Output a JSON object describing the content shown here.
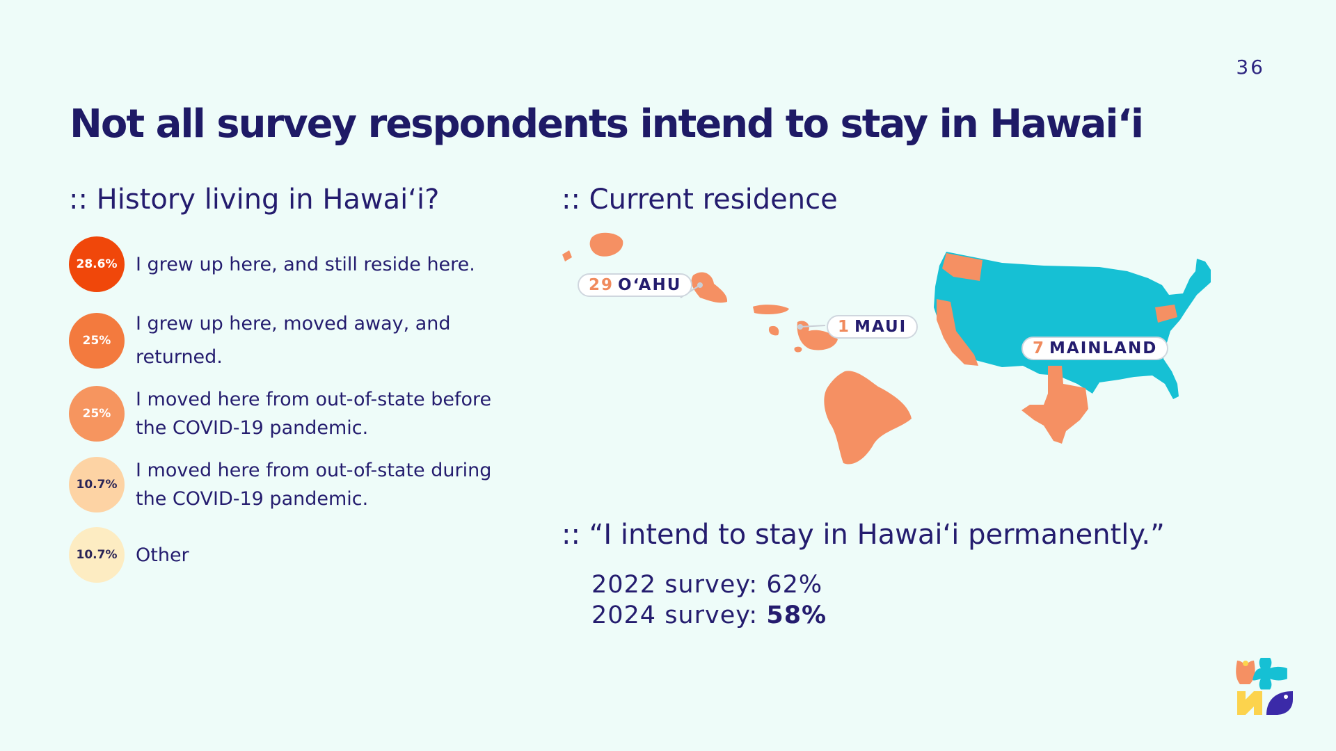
{
  "page_number": "36",
  "title": "Not all survey respondents intend to stay in Hawaiʻi",
  "history": {
    "heading": ":: History living in Hawaiʻi?",
    "items": [
      {
        "percent": "28.6%",
        "label": "I grew up here, and still reside here.",
        "color": "#f0470a",
        "text_color": "#ffffff"
      },
      {
        "percent": "25%",
        "label": "I grew up here, moved away, and returned.",
        "color": "#f37a3e",
        "text_color": "#ffffff"
      },
      {
        "percent": "25%",
        "label": "I moved here from out-of-state before the COVID-19 pandemic.",
        "color": "#f6955f",
        "text_color": "#ffffff"
      },
      {
        "percent": "10.7%",
        "label": "I moved here from out-of-state during the COVID-19 pandemic.",
        "color": "#fdd3a4",
        "text_color": "#2a2456"
      },
      {
        "percent": "10.7%",
        "label": "Other",
        "color": "#fdecc2",
        "text_color": "#2a2456"
      }
    ]
  },
  "residence": {
    "heading": ":: Current residence",
    "locations": [
      {
        "count": "29",
        "name": "OʻAHU"
      },
      {
        "count": "1",
        "name": "MAUI"
      },
      {
        "count": "7",
        "name": "MAINLAND"
      }
    ],
    "colors": {
      "highlight": "#f59063",
      "mainland": "#16c0d4"
    }
  },
  "intent": {
    "heading": ":: “I intend to stay in Hawaiʻi permanently.”",
    "rows": [
      {
        "label": "2022 survey: ",
        "value": "62%"
      },
      {
        "label": "2024 survey: ",
        "value": "58%"
      }
    ]
  },
  "logo_icon": "flower-logo-icon"
}
